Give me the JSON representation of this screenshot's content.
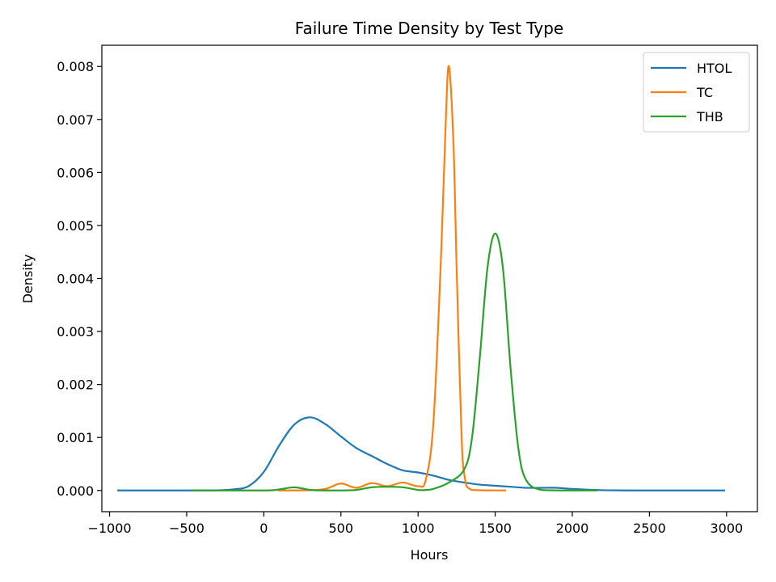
{
  "chart_data": {
    "type": "line",
    "title": "Failure Time Density by Test Type",
    "xlabel": "Hours",
    "ylabel": "Density",
    "xlim": [
      -1050,
      3200
    ],
    "ylim": [
      -0.0004,
      0.0084
    ],
    "xticks": [
      -1000,
      -500,
      0,
      500,
      1000,
      1500,
      2000,
      2500,
      3000
    ],
    "xtick_labels": [
      "−1000",
      "−500",
      "0",
      "500",
      "1000",
      "1500",
      "2000",
      "2500",
      "3000"
    ],
    "yticks": [
      0.0,
      0.001,
      0.002,
      0.003,
      0.004,
      0.005,
      0.006,
      0.007,
      0.008
    ],
    "ytick_labels": [
      "0.000",
      "0.001",
      "0.002",
      "0.003",
      "0.004",
      "0.005",
      "0.006",
      "0.007",
      "0.008"
    ],
    "grid": false,
    "legend_position": "top-right",
    "series": [
      {
        "name": "HTOL",
        "color": "#1f77b4",
        "points": [
          [
            -950,
            0
          ],
          [
            -500,
            0
          ],
          [
            -300,
            3e-06
          ],
          [
            -200,
            2e-05
          ],
          [
            -100,
            8e-05
          ],
          [
            0,
            0.00035
          ],
          [
            100,
            0.00085
          ],
          [
            200,
            0.00125
          ],
          [
            300,
            0.00138
          ],
          [
            400,
            0.00125
          ],
          [
            500,
            0.00102
          ],
          [
            600,
            0.0008
          ],
          [
            700,
            0.00065
          ],
          [
            800,
            0.0005
          ],
          [
            900,
            0.00038
          ],
          [
            1000,
            0.00034
          ],
          [
            1100,
            0.00028
          ],
          [
            1200,
            0.0002
          ],
          [
            1300,
            0.00015
          ],
          [
            1400,
            0.00011
          ],
          [
            1500,
            9e-05
          ],
          [
            1600,
            7e-05
          ],
          [
            1700,
            5e-05
          ],
          [
            1800,
            5e-05
          ],
          [
            1900,
            5e-05
          ],
          [
            2000,
            3e-05
          ],
          [
            2200,
            5e-06
          ],
          [
            2500,
            0
          ],
          [
            2990,
            0
          ]
        ]
      },
      {
        "name": "TC",
        "color": "#ff7f0e",
        "points": [
          [
            90,
            0
          ],
          [
            300,
            5e-06
          ],
          [
            400,
            3e-05
          ],
          [
            500,
            0.00013
          ],
          [
            600,
            5e-05
          ],
          [
            700,
            0.00014
          ],
          [
            800,
            8e-05
          ],
          [
            900,
            0.00015
          ],
          [
            1000,
            8e-05
          ],
          [
            1050,
            0.0002
          ],
          [
            1100,
            0.0013
          ],
          [
            1150,
            0.0045
          ],
          [
            1180,
            0.007
          ],
          [
            1200,
            0.008
          ],
          [
            1230,
            0.0065
          ],
          [
            1250,
            0.0042
          ],
          [
            1280,
            0.0012
          ],
          [
            1300,
            0.0003
          ],
          [
            1350,
            1e-05
          ],
          [
            1570,
            0
          ]
        ]
      },
      {
        "name": "THB",
        "color": "#2ca02c",
        "points": [
          [
            -470,
            0
          ],
          [
            0,
            0
          ],
          [
            100,
            2e-05
          ],
          [
            200,
            6e-05
          ],
          [
            300,
            1e-05
          ],
          [
            400,
            0
          ],
          [
            500,
            0
          ],
          [
            600,
            1e-05
          ],
          [
            700,
            6e-05
          ],
          [
            800,
            7e-05
          ],
          [
            900,
            6e-05
          ],
          [
            1000,
            1e-05
          ],
          [
            1050,
            1e-05
          ],
          [
            1100,
            3e-05
          ],
          [
            1200,
            0.00015
          ],
          [
            1300,
            0.0004
          ],
          [
            1350,
            0.001
          ],
          [
            1400,
            0.0025
          ],
          [
            1450,
            0.0042
          ],
          [
            1500,
            0.00485
          ],
          [
            1550,
            0.0042
          ],
          [
            1600,
            0.0023
          ],
          [
            1650,
            0.0008
          ],
          [
            1700,
            0.0002
          ],
          [
            1800,
            1e-05
          ],
          [
            2000,
            0
          ],
          [
            2160,
            0
          ]
        ]
      }
    ]
  }
}
